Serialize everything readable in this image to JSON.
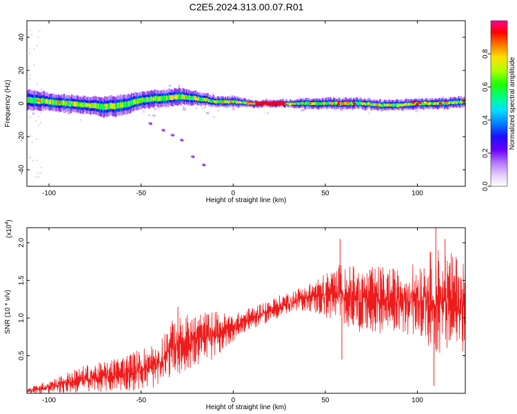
{
  "page": {
    "title": "C2E5.2024.313.00.07.R01"
  },
  "colors": {
    "trace": "#ee1c1c",
    "frame": "#000000",
    "colormap": [
      "#ffffff",
      "#e8d5ff",
      "#b57cff",
      "#8a2be2",
      "#2a00ff",
      "#0040ff",
      "#00a0ff",
      "#00ffff",
      "#00ff80",
      "#00ff00",
      "#80ff00",
      "#ffff00",
      "#ffa000",
      "#ff4000",
      "#ff0000",
      "#ff0080"
    ]
  },
  "chart_data": [
    {
      "type": "heatmap",
      "name": "spectrogram",
      "xlabel": "Height of straight line (km)",
      "ylabel": "Frequency (Hz)",
      "xlim": [
        -112,
        126
      ],
      "ylim": [
        -50,
        50
      ],
      "xticks": [
        -100,
        -50,
        0,
        50,
        100
      ],
      "yticks": [
        -40,
        -20,
        0,
        20,
        40
      ],
      "ridge": [
        {
          "x": -110,
          "f": 2,
          "w": 6
        },
        {
          "x": -100,
          "f": 1,
          "w": 5
        },
        {
          "x": -90,
          "f": 0,
          "w": 5
        },
        {
          "x": -80,
          "f": -1,
          "w": 5
        },
        {
          "x": -70,
          "f": -2,
          "w": 6
        },
        {
          "x": -60,
          "f": -1,
          "w": 6
        },
        {
          "x": -50,
          "f": 2,
          "w": 5
        },
        {
          "x": -40,
          "f": 3,
          "w": 5
        },
        {
          "x": -30,
          "f": 4,
          "w": 5
        },
        {
          "x": -20,
          "f": 3,
          "w": 4
        },
        {
          "x": -10,
          "f": 1,
          "w": 3
        },
        {
          "x": 0,
          "f": 1,
          "w": 3
        },
        {
          "x": 10,
          "f": 0,
          "w": 2
        },
        {
          "x": 20,
          "f": 0,
          "w": 2
        },
        {
          "x": 30,
          "f": 0,
          "w": 2
        },
        {
          "x": 40,
          "f": 0,
          "w": 3
        },
        {
          "x": 50,
          "f": 0,
          "w": 3
        },
        {
          "x": 60,
          "f": 0,
          "w": 3
        },
        {
          "x": 70,
          "f": 0,
          "w": 3
        },
        {
          "x": 80,
          "f": -1,
          "w": 3
        },
        {
          "x": 90,
          "f": -1,
          "w": 3
        },
        {
          "x": 100,
          "f": 0,
          "w": 3
        },
        {
          "x": 110,
          "f": 0,
          "w": 3
        },
        {
          "x": 126,
          "f": 1,
          "w": 3
        }
      ],
      "peak_band": {
        "x_from": 12,
        "x_to": 28,
        "f": 0
      },
      "stray_track": [
        {
          "x": -45,
          "f": -12
        },
        {
          "x": -38,
          "f": -16
        },
        {
          "x": -33,
          "f": -19
        },
        {
          "x": -28,
          "f": -22
        },
        {
          "x": -22,
          "f": -32
        },
        {
          "x": -16,
          "f": -37
        }
      ],
      "colorbar": {
        "label": "Normalized spectral amplitude",
        "ticks": [
          "0.0",
          "0.2",
          "0.4",
          "0.6",
          "0.8"
        ],
        "tick_values": [
          0.0,
          0.2,
          0.4,
          0.6,
          0.8
        ],
        "range": [
          0,
          1
        ]
      }
    },
    {
      "type": "line",
      "name": "snr",
      "xlabel": "Height of straight line (km)",
      "ylabel": "SNR (10 * v/v)",
      "yscale_note": "(x10",
      "yscale_exp": "4",
      "xlim": [
        -112,
        126
      ],
      "ylim": [
        0,
        2.2
      ],
      "xticks": [
        -100,
        -50,
        0,
        50,
        100
      ],
      "yticks": [
        0.5,
        1.0,
        1.5,
        2.0
      ],
      "ytick_labels": [
        "0.5",
        "1.0",
        "1.5",
        "2.0"
      ],
      "envelope": [
        {
          "x": -112,
          "lo": 0.0,
          "hi": 0.06
        },
        {
          "x": -100,
          "lo": 0.0,
          "hi": 0.18
        },
        {
          "x": -90,
          "lo": 0.0,
          "hi": 0.28
        },
        {
          "x": -80,
          "lo": 0.01,
          "hi": 0.38
        },
        {
          "x": -70,
          "lo": 0.02,
          "hi": 0.42
        },
        {
          "x": -60,
          "lo": 0.03,
          "hi": 0.5
        },
        {
          "x": -50,
          "lo": 0.04,
          "hi": 0.6
        },
        {
          "x": -40,
          "lo": 0.08,
          "hi": 0.7
        },
        {
          "x": -35,
          "lo": 0.2,
          "hi": 0.95
        },
        {
          "x": -25,
          "lo": 0.3,
          "hi": 1.05
        },
        {
          "x": -10,
          "lo": 0.45,
          "hi": 1.1
        },
        {
          "x": 0,
          "lo": 0.7,
          "hi": 1.05
        },
        {
          "x": 10,
          "lo": 0.85,
          "hi": 1.15
        },
        {
          "x": 20,
          "lo": 0.95,
          "hi": 1.25
        },
        {
          "x": 30,
          "lo": 1.05,
          "hi": 1.35
        },
        {
          "x": 40,
          "lo": 1.1,
          "hi": 1.45
        },
        {
          "x": 50,
          "lo": 1.0,
          "hi": 1.6
        },
        {
          "x": 60,
          "lo": 0.9,
          "hi": 1.75
        },
        {
          "x": 70,
          "lo": 0.8,
          "hi": 1.65
        },
        {
          "x": 80,
          "lo": 0.8,
          "hi": 1.7
        },
        {
          "x": 90,
          "lo": 0.8,
          "hi": 1.65
        },
        {
          "x": 100,
          "lo": 0.75,
          "hi": 1.75
        },
        {
          "x": 110,
          "lo": 0.5,
          "hi": 1.95
        },
        {
          "x": 126,
          "lo": 0.55,
          "hi": 1.8
        }
      ],
      "spikes": [
        {
          "x": 58,
          "y": 2.05
        },
        {
          "x": 110,
          "y": 2.2
        },
        {
          "x": 109,
          "y": 0.1
        },
        {
          "x": 59,
          "y": 0.45
        },
        {
          "x": -30,
          "y": 1.15
        },
        {
          "x": 115,
          "y": 2.05
        }
      ]
    }
  ]
}
